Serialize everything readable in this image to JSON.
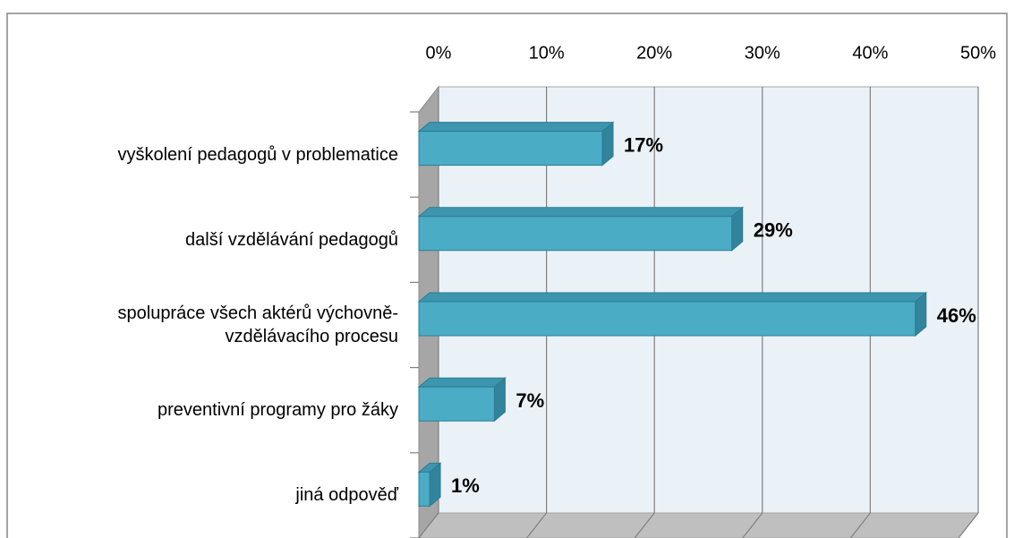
{
  "chart_data": {
    "type": "bar3d_horizontal",
    "categories": [
      "vyškolení pedagogů v problematice",
      "další vzdělávání pedagogů",
      "spolupráce všech aktérů výchovně-vzdělávacího procesu",
      "preventivní programy pro žáky",
      "jiná odpověď"
    ],
    "values": [
      17,
      29,
      46,
      7,
      1
    ],
    "value_labels": [
      "17%",
      "29%",
      "46%",
      "7%",
      "1%"
    ],
    "color": "#4bacc6",
    "xlim": [
      0,
      50
    ],
    "xticks": [
      {
        "value": 0,
        "label": "0%"
      },
      {
        "value": 10,
        "label": "10%"
      },
      {
        "value": 20,
        "label": "20%"
      },
      {
        "value": 30,
        "label": "30%"
      },
      {
        "value": 40,
        "label": "40%"
      },
      {
        "value": 50,
        "label": "50%"
      }
    ],
    "grid": true
  }
}
